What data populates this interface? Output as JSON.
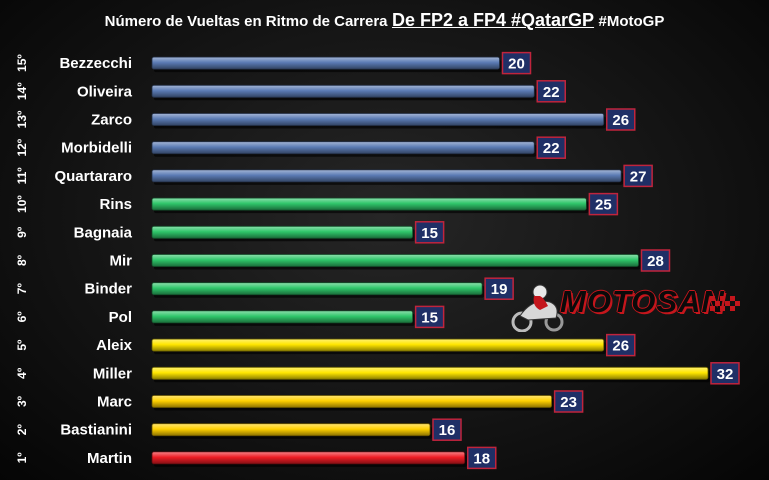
{
  "title": {
    "main": "Número de Vueltas en Ritmo de Carrera",
    "highlight": "De FP2 a FP4 #QatarGP",
    "tag": "#MotoGP"
  },
  "logo": {
    "text": "MOTOSAN"
  },
  "colors": {
    "blue": "#5b7bb4",
    "green": "#2fc66a",
    "yellow": "#ffe600",
    "orange_yellow": "#ffd000",
    "red": "#ee1c24",
    "value_box": "#1f2f66",
    "value_border": "#c0243c"
  },
  "chart_data": {
    "type": "bar",
    "orientation": "horizontal",
    "title": "Número de Vueltas en Ritmo de Carrera De FP2 a FP4 #QatarGP #MotoGP",
    "categories": [
      "Bezzecchi",
      "Oliveira",
      "Zarco",
      "Morbidelli",
      "Quartararo",
      "Rins",
      "Bagnaia",
      "Mir",
      "Binder",
      "Pol",
      "Aleix",
      "Miller",
      "Marc",
      "Bastianini",
      "Martin"
    ],
    "ranks": [
      "15º",
      "14º",
      "13º",
      "12º",
      "11º",
      "10º",
      "9º",
      "8º",
      "7º",
      "6º",
      "5º",
      "4º",
      "3º",
      "2º",
      "1º"
    ],
    "values": [
      20,
      22,
      26,
      22,
      27,
      25,
      15,
      28,
      19,
      15,
      26,
      32,
      23,
      16,
      18
    ],
    "bar_colors": [
      "blue",
      "blue",
      "blue",
      "blue",
      "blue",
      "green",
      "green",
      "green",
      "green",
      "green",
      "yellow",
      "yellow",
      "orange_yellow",
      "orange_yellow",
      "red"
    ],
    "xlim": [
      0,
      32
    ],
    "data_labels": true,
    "grid": false,
    "legend": "none"
  }
}
